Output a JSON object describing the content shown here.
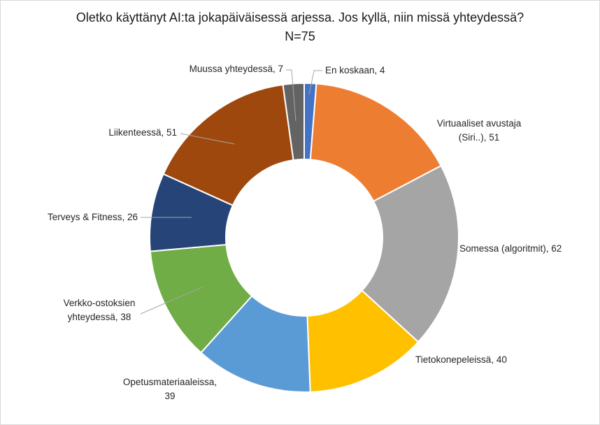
{
  "chart_data": {
    "type": "pie",
    "variant": "doughnut",
    "title": "Oletko käyttänyt AI:ta jokapäiväisessä arjessa. Jos kyllä, niin missä yhteydessä?",
    "subtitle": "N=75",
    "categories": [
      "En koskaan",
      "Virtuaaliset avustaja (Siri..)",
      "Somessa (algoritmit)",
      "Tietokonepeleissä",
      "Opetusmateriaaleissa",
      "Verkko-ostoksien yhteydessä",
      "Terveys & Fitness",
      "Liikenteessä",
      "Muussa yhteydessä"
    ],
    "values": [
      4,
      51,
      62,
      40,
      39,
      38,
      26,
      51,
      7
    ],
    "colors": [
      "#4472c4",
      "#ed7d31",
      "#a5a5a5",
      "#ffc000",
      "#5b9bd5",
      "#70ad47",
      "#264478",
      "#9e480e",
      "#636363"
    ],
    "labels": [
      [
        "En koskaan, 4"
      ],
      [
        "Virtuaaliset avustaja",
        "(Siri..), 51"
      ],
      [
        "Somessa (algoritmit), 62"
      ],
      [
        "Tietokonepeleissä, 40"
      ],
      [
        "Opetusmateriaaleissa,",
        "39"
      ],
      [
        "Verkko-ostoksien",
        "yhteydessä, 38"
      ],
      [
        "Terveys & Fitness, 26"
      ],
      [
        "Liikenteessä, 51"
      ],
      [
        "Muussa yhteydessä, 7"
      ]
    ],
    "legend": "none"
  }
}
